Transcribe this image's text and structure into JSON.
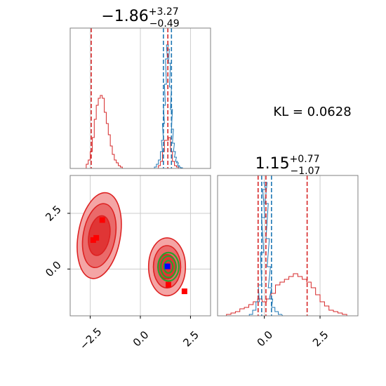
{
  "colors": {
    "red": "#d62728",
    "red_fill": "#ef8f8f",
    "red_dark": "#dd2222",
    "blue": "#1f77b4",
    "blue_dash": "#1f77b4",
    "green": "#2ca02c",
    "square_red": "#ff0000",
    "square_blue": "#0000ff",
    "grid": "#cccccc",
    "frame": "#808080"
  },
  "annotation": {
    "kl_text": "KL = 0.0628"
  },
  "chart_data": [
    {
      "panel": "marginal-x",
      "type": "line",
      "title": {
        "median": "−1.86",
        "upper": "+3.27",
        "lower": "−0.49"
      },
      "xlim": [
        -3.5,
        3.5
      ],
      "series": [
        {
          "color": "red",
          "x": [
            -2.65,
            -2.55,
            -2.45,
            -2.35,
            -2.25,
            -2.15,
            -2.05,
            -1.95,
            -1.85,
            -1.75,
            -1.65,
            -1.55,
            -1.45,
            -1.35,
            -1.25,
            -1.15,
            -1.05,
            -0.95,
            -0.85,
            -0.75,
            -0.65,
            -0.55,
            -0.45,
            -0.35,
            -0.25,
            -0.15,
            -0.05,
            0.05,
            0.15,
            0.25,
            0.35,
            0.45,
            0.55,
            0.65,
            0.75,
            0.85,
            0.95,
            1.05,
            1.15,
            1.25,
            1.35,
            1.45,
            1.55,
            1.65,
            1.75,
            1.85,
            1.95,
            2.05,
            2.15
          ],
          "y": [
            0.03,
            0.06,
            0.12,
            0.22,
            0.35,
            0.45,
            0.5,
            0.52,
            0.5,
            0.4,
            0.32,
            0.24,
            0.16,
            0.1,
            0.06,
            0.04,
            0.02,
            0.01,
            0.0,
            0.0,
            0.0,
            0.0,
            0.0,
            0.0,
            0.0,
            0.0,
            0.0,
            0.0,
            0.0,
            0.0,
            0.0,
            0.0,
            0.0,
            0.0,
            0.0,
            0.0,
            0.02,
            0.05,
            0.12,
            0.2,
            0.2,
            0.22,
            0.12,
            0.05,
            0.02,
            0.01,
            0.0,
            0.0,
            0.0
          ]
        },
        {
          "color": "blue",
          "x": [
            0.75,
            0.85,
            0.95,
            1.05,
            1.1,
            1.15,
            1.2,
            1.25,
            1.3,
            1.35,
            1.4,
            1.45,
            1.5,
            1.55,
            1.6,
            1.65,
            1.7,
            1.75,
            1.8,
            1.85,
            1.9,
            1.95,
            2.05,
            2.15
          ],
          "y": [
            0.01,
            0.03,
            0.06,
            0.12,
            0.2,
            0.32,
            0.45,
            0.6,
            0.78,
            0.88,
            0.85,
            0.75,
            0.58,
            0.42,
            0.28,
            0.18,
            0.12,
            0.08,
            0.05,
            0.04,
            0.02,
            0.01,
            0.005,
            0.0
          ]
        }
      ],
      "vlines": [
        {
          "x": -2.45,
          "color": "red"
        },
        {
          "x": 1.15,
          "color": "blue"
        },
        {
          "x": 1.55,
          "color": "blue"
        },
        {
          "x": 1.37,
          "color": "red"
        }
      ],
      "ticks_x": [
        -2.5,
        0.0,
        2.5
      ]
    },
    {
      "panel": "joint",
      "type": "scatter",
      "xlim": [
        -3.5,
        3.5
      ],
      "ylim": [
        -2.1,
        4.2
      ],
      "xticks": [
        "−2.5",
        "0.0",
        "2.5"
      ],
      "xtick_values": [
        -2.5,
        0.0,
        2.5
      ],
      "yticks": [
        "0.0",
        "2.5"
      ],
      "ytick_values": [
        0.0,
        2.5
      ],
      "red_cluster": {
        "cx": -2.05,
        "cy": 1.5,
        "rx": [
          0.52,
          0.8,
          1.05
        ],
        "ry": [
          0.9,
          1.45,
          1.95
        ],
        "rot": 10
      },
      "small_cluster": {
        "cx": 1.33,
        "cy": 0.1,
        "rx": [
          0.45,
          0.68,
          0.92
        ],
        "ry": [
          0.55,
          0.95,
          1.3
        ]
      },
      "green_cluster": {
        "cx": 1.4,
        "cy": 0.1,
        "rx": [
          0.22,
          0.38,
          0.52
        ],
        "ry": [
          0.28,
          0.48,
          0.64
        ]
      },
      "red_squares": [
        {
          "x": -1.9,
          "y": 2.2
        },
        {
          "x": -2.35,
          "y": 1.3
        },
        {
          "x": -2.2,
          "y": 1.4
        },
        {
          "x": 1.4,
          "y": -0.7
        },
        {
          "x": 2.2,
          "y": -1.0
        }
      ],
      "blue_squares": [
        {
          "x": 1.35,
          "y": 0.12
        }
      ]
    },
    {
      "panel": "marginal-y",
      "type": "line",
      "title": {
        "median": "1.15",
        "upper": "+0.77",
        "lower": "−1.07"
      },
      "xlim": [
        -2.1,
        4.2
      ],
      "series": [
        {
          "color": "red",
          "x": [
            -1.6,
            -1.4,
            -1.2,
            -1.0,
            -0.8,
            -0.6,
            -0.4,
            -0.2,
            0.0,
            0.2,
            0.4,
            0.6,
            0.8,
            1.0,
            1.2,
            1.4,
            1.6,
            1.8,
            2.0,
            2.2,
            2.4,
            2.6,
            2.8,
            3.0,
            3.2,
            3.4,
            3.6,
            3.8
          ],
          "y": [
            0.01,
            0.02,
            0.03,
            0.05,
            0.06,
            0.08,
            0.1,
            0.12,
            0.1,
            0.12,
            0.16,
            0.22,
            0.24,
            0.26,
            0.28,
            0.3,
            0.28,
            0.26,
            0.24,
            0.2,
            0.15,
            0.1,
            0.07,
            0.04,
            0.03,
            0.02,
            0.01,
            0.0
          ]
        },
        {
          "color": "blue",
          "x": [
            -0.6,
            -0.45,
            -0.3,
            -0.2,
            -0.1,
            -0.05,
            0.0,
            0.05,
            0.1,
            0.15,
            0.2,
            0.25,
            0.3,
            0.4,
            0.55,
            0.7,
            0.9
          ],
          "y": [
            0.01,
            0.04,
            0.1,
            0.22,
            0.45,
            0.7,
            0.9,
            0.95,
            0.8,
            0.55,
            0.35,
            0.2,
            0.12,
            0.06,
            0.03,
            0.01,
            0.0
          ]
        }
      ],
      "vlines": [
        {
          "x": -0.28,
          "color": "red"
        },
        {
          "x": -0.12,
          "color": "blue"
        },
        {
          "x": 0.07,
          "color": "red"
        },
        {
          "x": 0.32,
          "color": "blue"
        },
        {
          "x": 1.92,
          "color": "red"
        }
      ],
      "xticks": [
        "0.0",
        "2.5"
      ],
      "xtick_values": [
        0.0,
        2.5
      ]
    }
  ]
}
